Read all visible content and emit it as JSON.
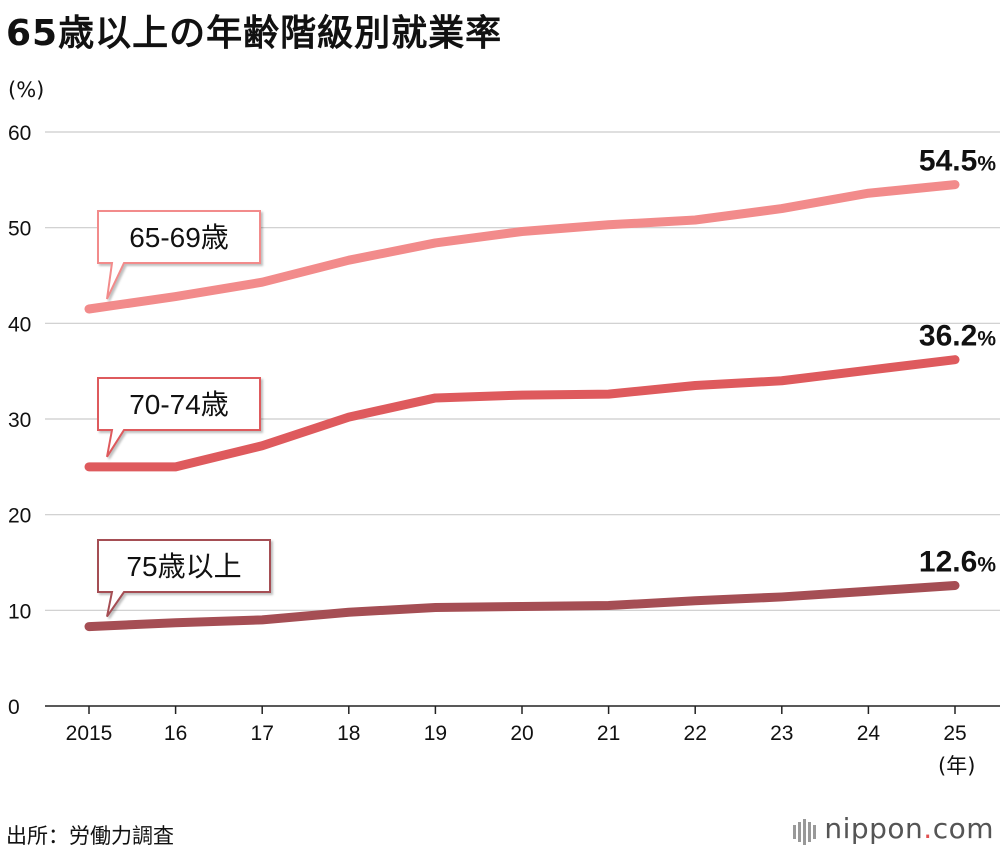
{
  "chart_data": {
    "type": "line",
    "title": "65歳以上の年齢階級別就業率",
    "ylabel": "(%)",
    "xunit": "(年)",
    "x": [
      "2015",
      "16",
      "17",
      "18",
      "19",
      "20",
      "21",
      "22",
      "23",
      "24",
      "25"
    ],
    "ylim": [
      0,
      60
    ],
    "yticks": [
      0,
      10,
      20,
      30,
      40,
      50,
      60
    ],
    "grid": true,
    "series": [
      {
        "name": "65-69歳",
        "color": "#f28b8b",
        "values": [
          41.5,
          42.8,
          44.3,
          46.6,
          48.4,
          49.6,
          50.3,
          50.8,
          52.0,
          53.6,
          54.5
        ],
        "end_label": "54.5",
        "end_unit": "%"
      },
      {
        "name": "70-74歳",
        "color": "#de5a5d",
        "values": [
          25.0,
          25.0,
          27.2,
          30.2,
          32.2,
          32.5,
          32.6,
          33.5,
          34.0,
          35.1,
          36.2
        ],
        "end_label": "36.2",
        "end_unit": "%"
      },
      {
        "name": "75歳以上",
        "color": "#a54e54",
        "values": [
          8.3,
          8.7,
          9.0,
          9.8,
          10.3,
          10.4,
          10.5,
          11.0,
          11.4,
          12.0,
          12.6
        ],
        "end_label": "12.6",
        "end_unit": "%"
      }
    ]
  },
  "source": "出所：労働力調査",
  "brand": {
    "name": "nippon",
    "dot": ".",
    "tld": "com"
  }
}
